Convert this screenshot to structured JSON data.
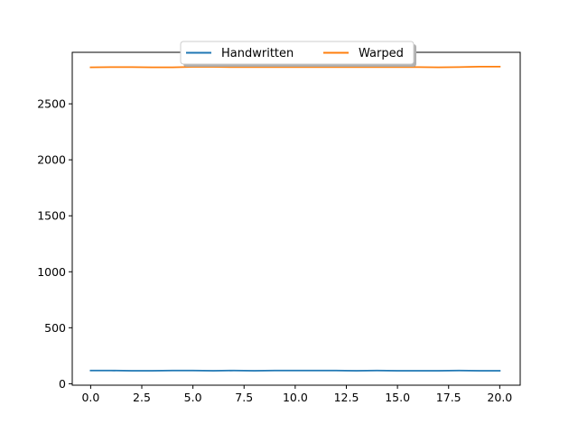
{
  "chart_data": {
    "type": "line",
    "title": "",
    "xlabel": "",
    "ylabel": "",
    "xlim": [
      -0.9,
      21
    ],
    "ylim": [
      -13,
      2960
    ],
    "xticks": [
      0.0,
      2.5,
      5.0,
      7.5,
      10.0,
      12.5,
      15.0,
      17.5,
      20.0
    ],
    "xtick_labels": [
      "0.0",
      "2.5",
      "5.0",
      "7.5",
      "10.0",
      "12.5",
      "15.0",
      "17.5",
      "20.0"
    ],
    "yticks": [
      0,
      500,
      1000,
      1500,
      2000,
      2500
    ],
    "ytick_labels": [
      "0",
      "500",
      "1000",
      "1500",
      "2000",
      "2500"
    ],
    "grid": false,
    "legend": {
      "location": "upper center",
      "columns": 2,
      "shadow": true
    },
    "x": [
      0,
      1,
      2,
      3,
      4,
      5,
      6,
      7,
      8,
      9,
      10,
      11,
      12,
      13,
      14,
      15,
      16,
      17,
      18,
      19,
      20
    ],
    "series": [
      {
        "name": "Handwritten",
        "color": "#1f77b4",
        "values": [
          118,
          118,
          116,
          116,
          118,
          118,
          116,
          118,
          116,
          118,
          118,
          118,
          118,
          116,
          118,
          116,
          116,
          116,
          118,
          116,
          116
        ]
      },
      {
        "name": "Warped",
        "color": "#ff7f0e",
        "values": [
          2826,
          2828,
          2828,
          2826,
          2826,
          2830,
          2830,
          2828,
          2828,
          2828,
          2828,
          2828,
          2828,
          2828,
          2828,
          2828,
          2828,
          2826,
          2828,
          2832,
          2832
        ]
      }
    ]
  }
}
